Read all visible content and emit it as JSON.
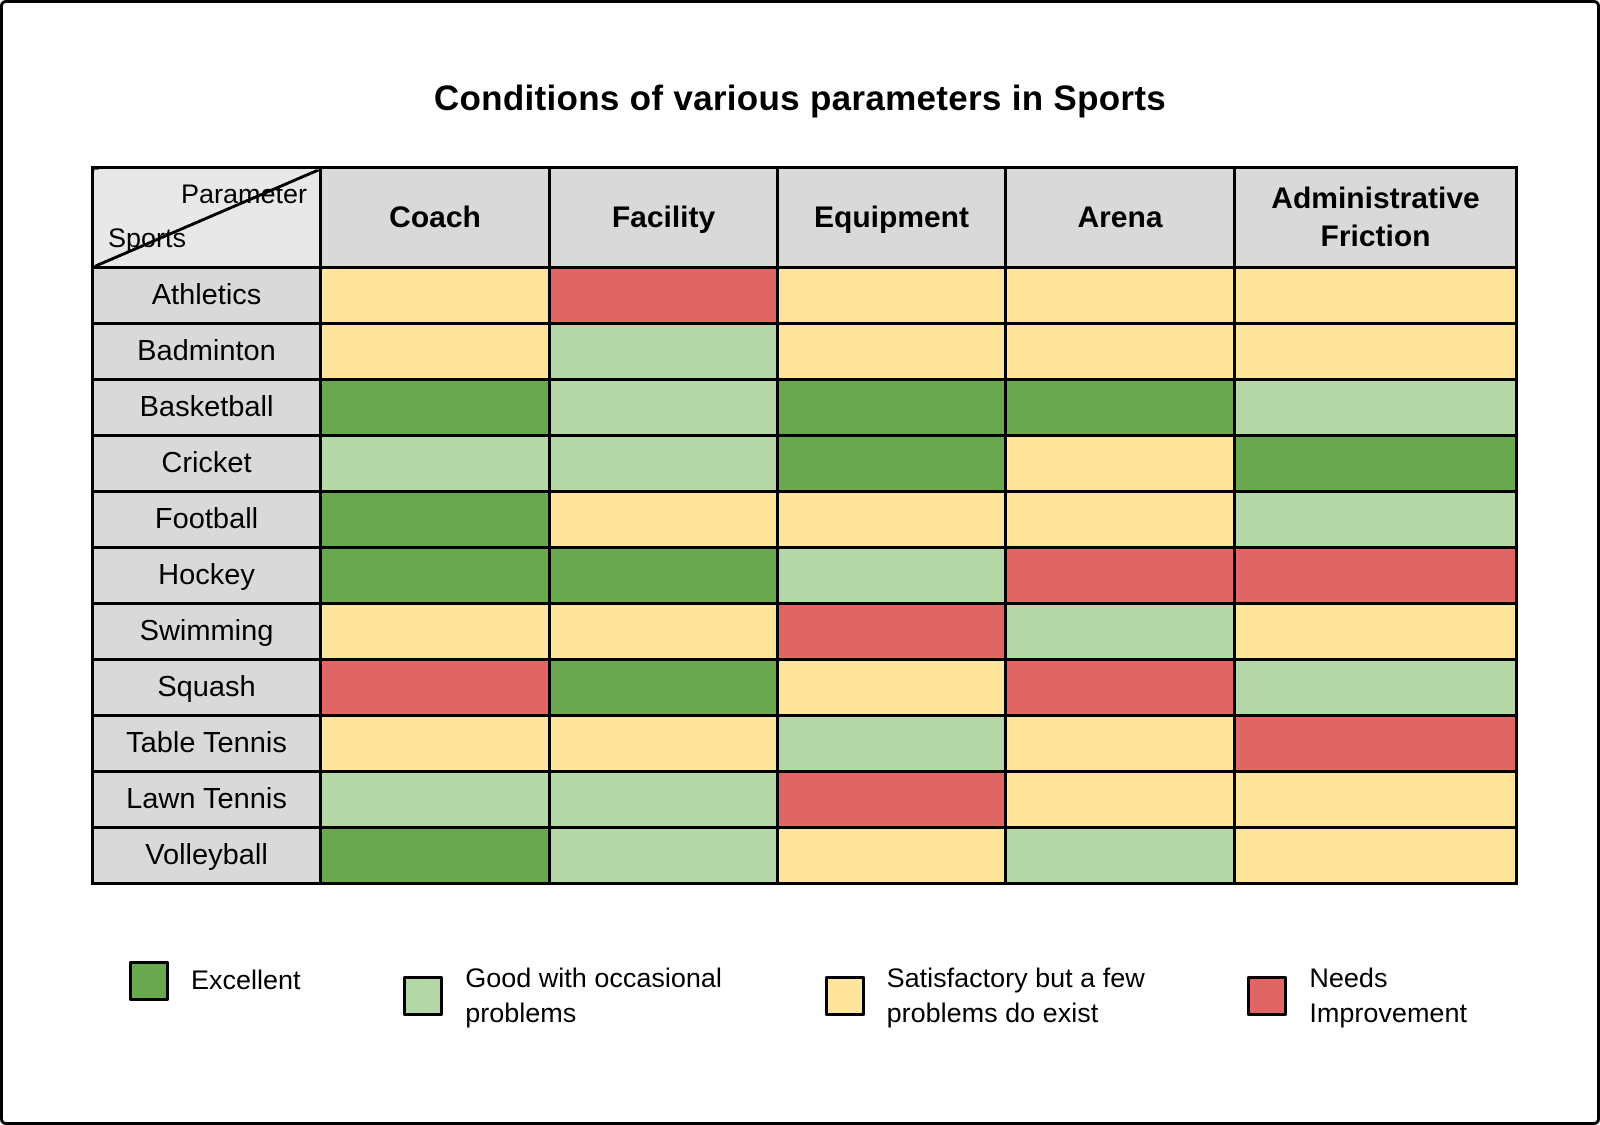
{
  "title": "Conditions of various parameters in Sports",
  "corner": {
    "top_label": "Parameter",
    "bottom_label": "Sports"
  },
  "colors": {
    "excellent": "#6aa84f",
    "good": "#b6d7a8",
    "satisfactory": "#ffe599",
    "needs_improvement": "#e06666",
    "header_bg": "#d9d9d9",
    "corner_bg": "#e8e8e8",
    "grid": "#000000"
  },
  "chart_data": {
    "type": "heatmap",
    "title": "Conditions of various parameters in Sports",
    "x_categories": [
      "Coach",
      "Facility",
      "Equipment",
      "Arena",
      "Administrative Friction"
    ],
    "y_categories": [
      "Athletics",
      "Badminton",
      "Basketball",
      "Cricket",
      "Football",
      "Hockey",
      "Swimming",
      "Squash",
      "Table Tennis",
      "Lawn Tennis",
      "Volleyball"
    ],
    "values": [
      [
        "satisfactory",
        "needs_improvement",
        "satisfactory",
        "satisfactory",
        "satisfactory"
      ],
      [
        "satisfactory",
        "good",
        "satisfactory",
        "satisfactory",
        "satisfactory"
      ],
      [
        "excellent",
        "good",
        "excellent",
        "excellent",
        "good"
      ],
      [
        "good",
        "good",
        "excellent",
        "satisfactory",
        "excellent"
      ],
      [
        "excellent",
        "satisfactory",
        "satisfactory",
        "satisfactory",
        "good"
      ],
      [
        "excellent",
        "excellent",
        "good",
        "needs_improvement",
        "needs_improvement"
      ],
      [
        "satisfactory",
        "satisfactory",
        "needs_improvement",
        "good",
        "satisfactory"
      ],
      [
        "needs_improvement",
        "excellent",
        "satisfactory",
        "needs_improvement",
        "good"
      ],
      [
        "satisfactory",
        "satisfactory",
        "good",
        "satisfactory",
        "needs_improvement"
      ],
      [
        "good",
        "good",
        "needs_improvement",
        "satisfactory",
        "satisfactory"
      ],
      [
        "excellent",
        "good",
        "satisfactory",
        "good",
        "satisfactory"
      ]
    ],
    "legend": [
      {
        "key": "excellent",
        "label": "Excellent",
        "color": "#6aa84f"
      },
      {
        "key": "good",
        "label": "Good with occasional\nproblems",
        "color": "#b6d7a8"
      },
      {
        "key": "satisfactory",
        "label": "Satisfactory but a few\nproblems do exist",
        "color": "#ffe599"
      },
      {
        "key": "needs_improvement",
        "label": "Needs\nImprovement",
        "color": "#e06666"
      }
    ]
  }
}
